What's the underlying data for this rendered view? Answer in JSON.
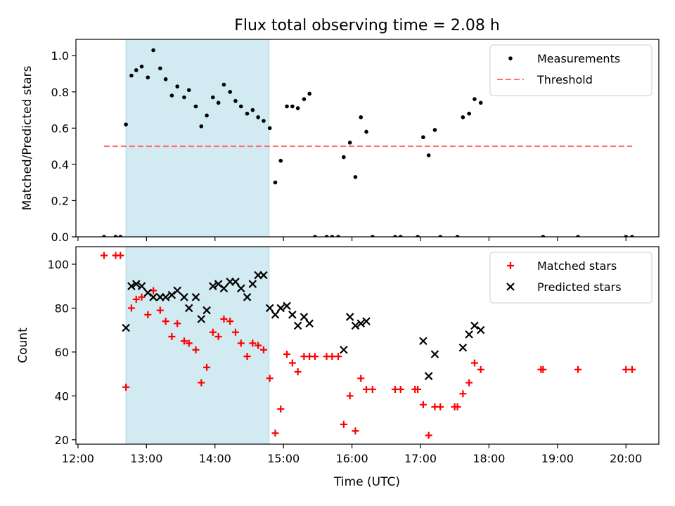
{
  "chart_data": {
    "title": "Flux total observing time = 2.08 h",
    "xlabel": "Time (UTC)",
    "x_ticks": [
      "12:00",
      "13:00",
      "14:00",
      "15:00",
      "16:00",
      "17:00",
      "18:00",
      "19:00",
      "20:00"
    ],
    "xlim_hours": [
      11.97,
      20.48
    ],
    "shaded_interval_hours": [
      12.7,
      14.79
    ],
    "shade_color": "#add8e6",
    "panels": [
      {
        "type": "scatter",
        "ylabel": "Matched/Predicted stars",
        "ylim": [
          0,
          1.09
        ],
        "y_ticks": [
          "0.0",
          "0.2",
          "0.4",
          "0.6",
          "0.8",
          "1.0"
        ],
        "y_tick_values": [
          0,
          0.2,
          0.4,
          0.6,
          0.8,
          1.0
        ],
        "legend_position": "upper right",
        "threshold": {
          "name": "Threshold",
          "value": 0.5,
          "x_range_hours": [
            12.38,
            20.09
          ],
          "color": "#ff7070"
        },
        "series": [
          {
            "name": "Measurements",
            "marker": "dot",
            "color": "#000000",
            "points": [
              [
                12.38,
                0.0
              ],
              [
                12.55,
                0.0
              ],
              [
                12.62,
                0.0
              ],
              [
                12.7,
                0.62
              ],
              [
                12.78,
                0.89
              ],
              [
                12.85,
                0.92
              ],
              [
                12.93,
                0.94
              ],
              [
                13.02,
                0.88
              ],
              [
                13.1,
                1.03
              ],
              [
                13.2,
                0.93
              ],
              [
                13.28,
                0.87
              ],
              [
                13.37,
                0.78
              ],
              [
                13.45,
                0.83
              ],
              [
                13.55,
                0.77
              ],
              [
                13.62,
                0.81
              ],
              [
                13.72,
                0.72
              ],
              [
                13.8,
                0.61
              ],
              [
                13.88,
                0.67
              ],
              [
                13.97,
                0.77
              ],
              [
                14.05,
                0.74
              ],
              [
                14.13,
                0.84
              ],
              [
                14.22,
                0.8
              ],
              [
                14.3,
                0.75
              ],
              [
                14.38,
                0.72
              ],
              [
                14.47,
                0.68
              ],
              [
                14.55,
                0.7
              ],
              [
                14.63,
                0.66
              ],
              [
                14.71,
                0.64
              ],
              [
                14.8,
                0.6
              ],
              [
                14.88,
                0.3
              ],
              [
                14.96,
                0.42
              ],
              [
                15.05,
                0.72
              ],
              [
                15.13,
                0.72
              ],
              [
                15.21,
                0.71
              ],
              [
                15.3,
                0.76
              ],
              [
                15.38,
                0.79
              ],
              [
                15.46,
                0.0
              ],
              [
                15.63,
                0.0
              ],
              [
                15.71,
                0.0
              ],
              [
                15.8,
                0.0
              ],
              [
                15.88,
                0.44
              ],
              [
                15.97,
                0.52
              ],
              [
                16.05,
                0.33
              ],
              [
                16.13,
                0.66
              ],
              [
                16.21,
                0.58
              ],
              [
                16.3,
                0.0
              ],
              [
                16.63,
                0.0
              ],
              [
                16.71,
                0.0
              ],
              [
                16.96,
                0.0
              ],
              [
                17.04,
                0.55
              ],
              [
                17.12,
                0.45
              ],
              [
                17.21,
                0.59
              ],
              [
                17.29,
                0.0
              ],
              [
                17.54,
                0.0
              ],
              [
                17.62,
                0.66
              ],
              [
                17.71,
                0.68
              ],
              [
                17.79,
                0.76
              ],
              [
                17.88,
                0.74
              ],
              [
                18.79,
                0.0
              ],
              [
                19.3,
                0.0
              ],
              [
                20.0,
                0.0
              ],
              [
                20.09,
                0.0
              ]
            ]
          }
        ]
      },
      {
        "type": "scatter",
        "ylabel": "Count",
        "ylim": [
          18,
          108
        ],
        "y_ticks": [
          "20",
          "40",
          "60",
          "80",
          "100"
        ],
        "y_tick_values": [
          20,
          40,
          60,
          80,
          100
        ],
        "legend_position": "upper right",
        "series": [
          {
            "name": "Matched stars",
            "marker": "plus",
            "color": "#ff0000",
            "points": [
              [
                12.38,
                104
              ],
              [
                12.55,
                104
              ],
              [
                12.62,
                104
              ],
              [
                12.7,
                44
              ],
              [
                12.78,
                80
              ],
              [
                12.85,
                84
              ],
              [
                12.93,
                85
              ],
              [
                13.02,
                77
              ],
              [
                13.1,
                88
              ],
              [
                13.2,
                79
              ],
              [
                13.28,
                74
              ],
              [
                13.37,
                67
              ],
              [
                13.45,
                73
              ],
              [
                13.55,
                65
              ],
              [
                13.62,
                64
              ],
              [
                13.72,
                61
              ],
              [
                13.8,
                46
              ],
              [
                13.88,
                53
              ],
              [
                13.97,
                69
              ],
              [
                14.05,
                67
              ],
              [
                14.13,
                75
              ],
              [
                14.22,
                74
              ],
              [
                14.3,
                69
              ],
              [
                14.38,
                64
              ],
              [
                14.47,
                58
              ],
              [
                14.55,
                64
              ],
              [
                14.63,
                63
              ],
              [
                14.71,
                61
              ],
              [
                14.8,
                48
              ],
              [
                14.88,
                23
              ],
              [
                14.96,
                34
              ],
              [
                15.05,
                59
              ],
              [
                15.13,
                55
              ],
              [
                15.21,
                51
              ],
              [
                15.3,
                58
              ],
              [
                15.38,
                58
              ],
              [
                15.46,
                58
              ],
              [
                15.63,
                58
              ],
              [
                15.71,
                58
              ],
              [
                15.8,
                58
              ],
              [
                15.88,
                27
              ],
              [
                15.97,
                40
              ],
              [
                16.05,
                24
              ],
              [
                16.13,
                48
              ],
              [
                16.21,
                43
              ],
              [
                16.3,
                43
              ],
              [
                16.63,
                43
              ],
              [
                16.71,
                43
              ],
              [
                16.92,
                43
              ],
              [
                16.96,
                43
              ],
              [
                17.04,
                36
              ],
              [
                17.12,
                22
              ],
              [
                17.21,
                35
              ],
              [
                17.29,
                35
              ],
              [
                17.5,
                35
              ],
              [
                17.54,
                35
              ],
              [
                17.62,
                41
              ],
              [
                17.71,
                46
              ],
              [
                17.79,
                55
              ],
              [
                17.88,
                52
              ],
              [
                18.76,
                52
              ],
              [
                18.79,
                52
              ],
              [
                19.3,
                52
              ],
              [
                20.0,
                52
              ],
              [
                20.09,
                52
              ]
            ]
          },
          {
            "name": "Predicted stars",
            "marker": "x",
            "color": "#000000",
            "points": [
              [
                12.7,
                71
              ],
              [
                12.78,
                90
              ],
              [
                12.85,
                91
              ],
              [
                12.93,
                90
              ],
              [
                13.02,
                87
              ],
              [
                13.1,
                85
              ],
              [
                13.2,
                85
              ],
              [
                13.28,
                85
              ],
              [
                13.37,
                86
              ],
              [
                13.45,
                88
              ],
              [
                13.55,
                85
              ],
              [
                13.62,
                80
              ],
              [
                13.72,
                85
              ],
              [
                13.8,
                75
              ],
              [
                13.88,
                79
              ],
              [
                13.97,
                90
              ],
              [
                14.05,
                91
              ],
              [
                14.13,
                89
              ],
              [
                14.22,
                92
              ],
              [
                14.3,
                92
              ],
              [
                14.38,
                89
              ],
              [
                14.47,
                85
              ],
              [
                14.55,
                91
              ],
              [
                14.63,
                95
              ],
              [
                14.71,
                95
              ],
              [
                14.8,
                80
              ],
              [
                14.88,
                77
              ],
              [
                14.96,
                80
              ],
              [
                15.05,
                81
              ],
              [
                15.13,
                77
              ],
              [
                15.21,
                72
              ],
              [
                15.3,
                76
              ],
              [
                15.38,
                73
              ],
              [
                15.88,
                61
              ],
              [
                15.97,
                76
              ],
              [
                16.05,
                72
              ],
              [
                16.13,
                73
              ],
              [
                16.21,
                74
              ],
              [
                17.04,
                65
              ],
              [
                17.12,
                49
              ],
              [
                17.21,
                59
              ],
              [
                17.62,
                62
              ],
              [
                17.71,
                68
              ],
              [
                17.79,
                72
              ],
              [
                17.88,
                70
              ]
            ]
          }
        ]
      }
    ]
  }
}
